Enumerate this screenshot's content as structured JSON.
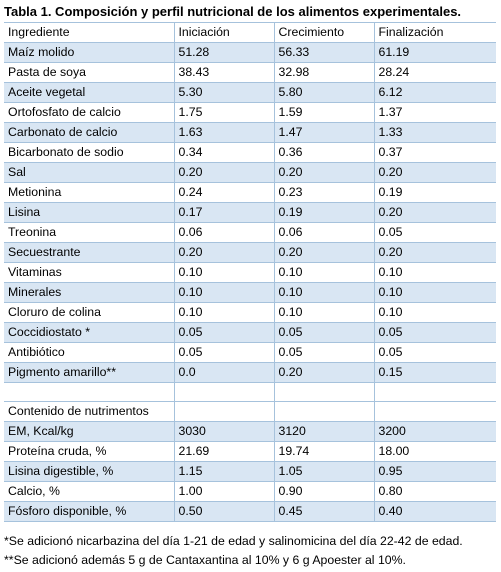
{
  "title": "Tabla 1. Composición y perfil nutricional de los alimentos experimentales.",
  "headers": [
    "Ingrediente",
    "Iniciación",
    "Crecimiento",
    "Finalización"
  ],
  "rows": [
    [
      "Maíz molido",
      "51.28",
      "56.33",
      "61.19"
    ],
    [
      "Pasta de soya",
      "38.43",
      "32.98",
      "28.24"
    ],
    [
      "Aceite vegetal",
      "5.30",
      "5.80",
      "6.12"
    ],
    [
      "Ortofosfato de calcio",
      "1.75",
      "1.59",
      "1.37"
    ],
    [
      "Carbonato de calcio",
      "1.63",
      "1.47",
      "1.33"
    ],
    [
      "Bicarbonato de sodio",
      "0.34",
      "0.36",
      "0.37"
    ],
    [
      "Sal",
      "0.20",
      "0.20",
      "0.20"
    ],
    [
      "Metionina",
      "0.24",
      "0.23",
      "0.19"
    ],
    [
      "Lisina",
      "0.17",
      "0.19",
      "0.20"
    ],
    [
      "Treonina",
      "0.06",
      "0.06",
      "0.05"
    ],
    [
      "Secuestrante",
      "0.20",
      "0.20",
      "0.20"
    ],
    [
      "Vitaminas",
      "0.10",
      "0.10",
      "0.10"
    ],
    [
      "Minerales",
      "0.10",
      "0.10",
      "0.10"
    ],
    [
      "Cloruro de colina",
      "0.10",
      "0.10",
      "0.10"
    ],
    [
      "Coccidiostato *",
      "0.05",
      "0.05",
      "0.05"
    ],
    [
      "Antibiótico",
      "0.05",
      "0.05",
      "0.05"
    ],
    [
      "Pigmento amarillo**",
      "0.0",
      "0.20",
      "0.15"
    ]
  ],
  "nutrients_heading": "Contenido de nutrimentos",
  "nutrient_rows": [
    [
      "EM, Kcal/kg",
      "3030",
      "3120",
      "3200"
    ],
    [
      "Proteína cruda, %",
      "21.69",
      "19.74",
      "18.00"
    ],
    [
      "Lisina digestible, %",
      "1.15",
      "1.05",
      "0.95"
    ],
    [
      "Calcio, %",
      "1.00",
      "0.90",
      "0.80"
    ],
    [
      "Fósforo disponible, %",
      "0.50",
      "0.45",
      "0.40"
    ]
  ],
  "footnotes": [
    "*Se adicionó nicarbazina del día 1-21 de edad y salinomicina del día 22-42 de edad.",
    "**Se adicionó además 5 g de Cantaxantina al 10% y 6 g Apoester al 10%."
  ]
}
